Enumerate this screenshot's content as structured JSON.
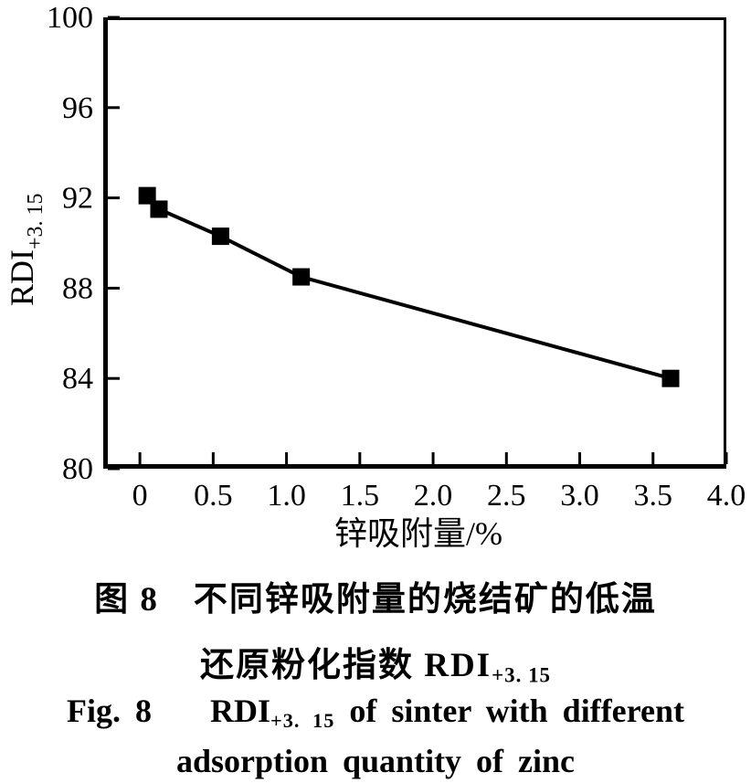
{
  "chart_data": {
    "type": "line",
    "title": "",
    "xlabel": "锌吸附量/%",
    "ylabel": "RDI",
    "ylabel_subscript": "+3. 15",
    "x": [
      0.05,
      0.13,
      0.55,
      1.1,
      3.62
    ],
    "y": [
      92.1,
      91.5,
      90.3,
      88.5,
      84.0
    ],
    "xlim": [
      -0.25,
      4.0
    ],
    "ylim": [
      80,
      100
    ],
    "x_ticks": [
      0,
      0.5,
      1.0,
      1.5,
      2.0,
      2.5,
      3.0,
      3.5,
      4.0
    ],
    "x_tick_labels": [
      "0",
      "0.5",
      "1.0",
      "1.5",
      "2.0",
      "2.5",
      "3.0",
      "3.5",
      "4.0"
    ],
    "y_ticks": [
      80,
      84,
      88,
      92,
      96,
      100
    ],
    "y_tick_labels": [
      "80",
      "84",
      "88",
      "92",
      "96",
      "100"
    ],
    "grid": false,
    "legend": false,
    "marker": "filled-square",
    "marker_size_px": 19,
    "line_color": "#000000",
    "marker_color": "#000000",
    "frame": "box"
  },
  "captions": {
    "cn_line1": {
      "fig_label": "图 8",
      "text": "不同锌吸附量的烧结矿的低温"
    },
    "cn_line2": {
      "prefix": "还原粉化指数 RDI",
      "subscript": "+3. 15"
    },
    "en_line1": {
      "fig_label": "Fig. 8",
      "rdi": "RDI",
      "subscript": "+3. 15",
      "rest": " of sinter with different"
    },
    "en_line2": {
      "text": "adsorption quantity of zinc"
    }
  }
}
